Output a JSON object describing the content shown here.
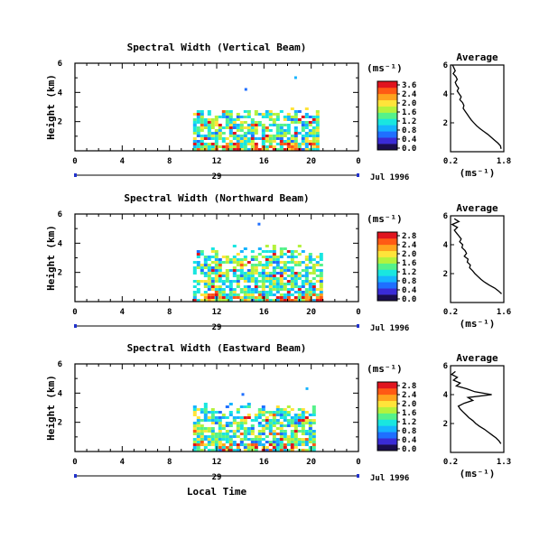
{
  "figure": {
    "shared_date_label": "Jul 1996",
    "shared_x_label": "Local Time",
    "day_marker": "29"
  },
  "colorscale": {
    "colors": [
      "#1a0d4f",
      "#3a2bd6",
      "#1f6fff",
      "#16b4ff",
      "#19e6e0",
      "#55f28a",
      "#b4f23c",
      "#ffe43a",
      "#ffa31e",
      "#ff5a14",
      "#e0141e"
    ]
  },
  "chart_data": [
    {
      "type": "heatmap",
      "title": "Spectral Width (Vertical Beam)",
      "ylabel": "Height (km)",
      "xlim": [
        0,
        24
      ],
      "ylim": [
        0,
        6
      ],
      "xticks": [
        "0",
        "4",
        "8",
        "12",
        "16",
        "20",
        "0"
      ],
      "yticks": [
        "2",
        "4",
        "6"
      ],
      "colorbar_label": "(ms⁻¹)",
      "colorbar_ticks": [
        "3.6",
        "2.4",
        "2.0",
        "1.6",
        "1.2",
        "0.8",
        "0.4",
        "0.0"
      ],
      "cmax": 3.6,
      "data_extent": {
        "t_start": 10,
        "t_end": 20.5,
        "h_top": 2.8,
        "h_spikes": [
          4.3,
          5.1
        ]
      },
      "average_profile": {
        "title": "Average",
        "xlabel": "(ms⁻¹)",
        "xlim": [
          0.2,
          1.8
        ],
        "xticks": [
          "0.2",
          "1.8"
        ],
        "yticks": [
          "2",
          "4",
          "6"
        ],
        "ylim": [
          0,
          6
        ],
        "height_km": [
          6.0,
          5.8,
          5.6,
          5.4,
          5.2,
          5.0,
          4.8,
          4.6,
          4.4,
          4.2,
          4.0,
          3.8,
          3.6,
          3.4,
          3.2,
          3.0,
          2.8,
          2.6,
          2.4,
          2.2,
          2.0,
          1.8,
          1.6,
          1.4,
          1.2,
          1.0,
          0.8,
          0.6,
          0.4,
          0.2
        ],
        "width_ms": [
          0.26,
          0.3,
          0.34,
          0.28,
          0.36,
          0.4,
          0.34,
          0.38,
          0.44,
          0.4,
          0.46,
          0.52,
          0.48,
          0.56,
          0.6,
          0.58,
          0.64,
          0.7,
          0.76,
          0.82,
          0.9,
          0.98,
          1.08,
          1.2,
          1.32,
          1.42,
          1.52,
          1.62,
          1.7,
          1.72
        ]
      }
    },
    {
      "type": "heatmap",
      "title": "Spectral Width (Northward Beam)",
      "ylabel": "Height (km)",
      "xlim": [
        0,
        24
      ],
      "ylim": [
        0,
        6
      ],
      "xticks": [
        "0",
        "4",
        "8",
        "12",
        "16",
        "20",
        "0"
      ],
      "yticks": [
        "2",
        "4",
        "6"
      ],
      "colorbar_label": "(ms⁻¹)",
      "colorbar_ticks": [
        "2.8",
        "2.4",
        "2.0",
        "1.6",
        "1.2",
        "0.8",
        "0.4",
        "0.0"
      ],
      "cmax": 2.8,
      "data_extent": {
        "t_start": 10,
        "t_end": 20.8,
        "h_top": 3.6,
        "h_spikes": [
          5.4
        ]
      },
      "average_profile": {
        "title": "Average",
        "xlabel": "(ms⁻¹)",
        "xlim": [
          0.2,
          1.6
        ],
        "xticks": [
          "0.2",
          "1.6"
        ],
        "yticks": [
          "2",
          "4",
          "6"
        ],
        "ylim": [
          0,
          6
        ],
        "height_km": [
          5.8,
          5.6,
          5.4,
          5.2,
          5.0,
          4.8,
          4.6,
          4.4,
          4.2,
          4.0,
          3.8,
          3.6,
          3.4,
          3.2,
          3.0,
          2.8,
          2.6,
          2.4,
          2.2,
          2.0,
          1.8,
          1.6,
          1.4,
          1.2,
          1.0,
          0.8,
          0.6
        ],
        "width_ms": [
          0.3,
          0.42,
          0.24,
          0.38,
          0.3,
          0.36,
          0.42,
          0.48,
          0.44,
          0.52,
          0.5,
          0.58,
          0.62,
          0.56,
          0.66,
          0.64,
          0.72,
          0.7,
          0.78,
          0.84,
          0.92,
          1.0,
          1.1,
          1.22,
          1.36,
          1.46,
          1.54
        ]
      }
    },
    {
      "type": "heatmap",
      "title": "Spectral Width (Eastward Beam)",
      "ylabel": "Height (km)",
      "xlim": [
        0,
        24
      ],
      "ylim": [
        0,
        6
      ],
      "xticks": [
        "0",
        "4",
        "8",
        "12",
        "16",
        "20",
        "0"
      ],
      "yticks": [
        "2",
        "4",
        "6"
      ],
      "colorbar_label": "(ms⁻¹)",
      "colorbar_ticks": [
        "2.8",
        "2.4",
        "2.0",
        "1.6",
        "1.2",
        "0.8",
        "0.4",
        "0.0"
      ],
      "cmax": 2.8,
      "data_extent": {
        "t_start": 10,
        "t_end": 20.3,
        "h_top": 3.2,
        "h_spikes": [
          4.0,
          4.4
        ]
      },
      "average_profile": {
        "title": "Average",
        "xlabel": "(ms⁻¹)",
        "xlim": [
          0.2,
          1.3
        ],
        "xticks": [
          "0.2",
          "1.3"
        ],
        "yticks": [
          "2",
          "4",
          "6"
        ],
        "ylim": [
          0,
          6
        ],
        "height_km": [
          5.6,
          5.4,
          5.2,
          5.0,
          4.8,
          4.6,
          4.4,
          4.2,
          4.0,
          3.8,
          3.6,
          3.4,
          3.2,
          3.0,
          2.8,
          2.6,
          2.4,
          2.2,
          2.0,
          1.8,
          1.6,
          1.4,
          1.2,
          1.0,
          0.8,
          0.6
        ],
        "width_ms": [
          0.3,
          0.22,
          0.34,
          0.26,
          0.4,
          0.32,
          0.54,
          0.7,
          1.05,
          0.56,
          0.66,
          0.48,
          0.36,
          0.4,
          0.46,
          0.52,
          0.58,
          0.66,
          0.72,
          0.8,
          0.9,
          0.98,
          1.06,
          1.14,
          1.2,
          1.24
        ]
      }
    }
  ]
}
